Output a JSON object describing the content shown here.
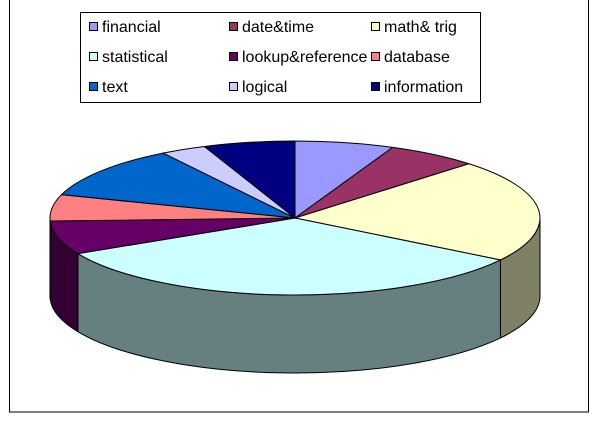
{
  "chart_data": {
    "type": "pie3d",
    "categories": [
      "financial",
      "date&time",
      "math& trig",
      "statistical",
      "lookup&reference",
      "database",
      "text",
      "logical",
      "information"
    ],
    "values": [
      6.5,
      6,
      21.5,
      33,
      7,
      5.5,
      11,
      3,
      6
    ],
    "colors": [
      "#9999ff",
      "#993366",
      "#ffffcc",
      "#ccffff",
      "#660066",
      "#ff8080",
      "#0066cc",
      "#ccccff",
      "#000080"
    ],
    "legend": "top"
  }
}
